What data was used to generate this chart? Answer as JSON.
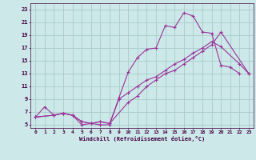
{
  "xlabel": "Windchill (Refroidissement éolien,°C)",
  "xlim": [
    -0.5,
    23.5
  ],
  "ylim": [
    4.5,
    24
  ],
  "xticks": [
    0,
    1,
    2,
    3,
    4,
    5,
    6,
    7,
    8,
    9,
    10,
    11,
    12,
    13,
    14,
    15,
    16,
    17,
    18,
    19,
    20,
    21,
    22,
    23
  ],
  "yticks": [
    5,
    7,
    9,
    11,
    13,
    15,
    17,
    19,
    21,
    23
  ],
  "bg_color": "#cce8e8",
  "grid_color": "#aacccc",
  "line_color": "#993399",
  "line1_x": [
    0,
    1,
    2,
    3,
    4,
    5,
    6,
    7,
    8,
    9,
    10,
    11,
    12,
    13,
    14,
    15,
    16,
    17,
    18,
    19,
    20,
    21,
    22
  ],
  "line1_y": [
    6.2,
    7.8,
    6.5,
    6.8,
    6.5,
    5.0,
    5.2,
    5.0,
    5.0,
    9.2,
    13.2,
    15.5,
    16.8,
    17.0,
    20.5,
    20.2,
    22.5,
    22.0,
    19.5,
    19.3,
    14.3,
    14.0,
    13.0
  ],
  "line2_x": [
    0,
    2,
    3,
    4,
    5,
    6,
    7,
    8,
    9,
    10,
    11,
    12,
    13,
    14,
    15,
    16,
    17,
    18,
    19,
    20,
    22,
    23
  ],
  "line2_y": [
    6.2,
    6.5,
    6.8,
    6.5,
    5.5,
    5.2,
    5.5,
    5.2,
    9.0,
    10.0,
    11.0,
    12.0,
    12.5,
    13.5,
    14.5,
    15.2,
    16.2,
    17.0,
    18.0,
    17.2,
    14.5,
    13.0
  ],
  "line3_x": [
    0,
    2,
    3,
    4,
    5,
    6,
    7,
    8,
    10,
    11,
    12,
    13,
    14,
    15,
    16,
    17,
    18,
    19,
    20,
    23
  ],
  "line3_y": [
    6.2,
    6.5,
    6.8,
    6.5,
    5.5,
    5.2,
    5.5,
    5.2,
    8.5,
    9.5,
    11.0,
    12.0,
    13.0,
    13.5,
    14.5,
    15.5,
    16.5,
    17.5,
    19.5,
    13.0
  ]
}
